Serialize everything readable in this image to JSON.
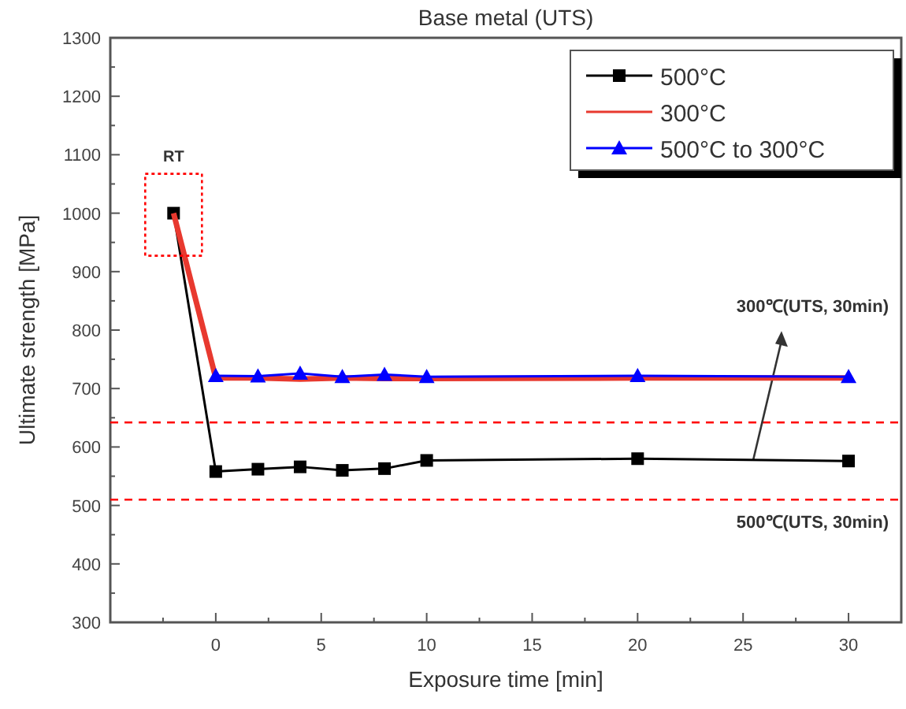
{
  "chart_data": {
    "type": "line",
    "title": "Base metal (UTS)",
    "xlabel": "Exposure time [min]",
    "ylabel": "Ultimate strength [MPa]",
    "xlim": [
      -5,
      32.5
    ],
    "ylim": [
      300,
      1300
    ],
    "xticks": [
      {
        "value": -2.5,
        "label": null
      },
      0,
      {
        "value": 2.5,
        "label": null
      },
      5,
      {
        "value": 7.5,
        "label": null
      },
      10,
      {
        "value": 12.5,
        "label": null
      },
      15,
      {
        "value": 17.5,
        "label": null
      },
      20,
      {
        "value": 22.5,
        "label": null
      },
      25,
      {
        "value": 27.5,
        "label": null
      },
      30
    ],
    "yticks": [
      300,
      {
        "value": 350,
        "label": null
      },
      400,
      {
        "value": 450,
        "label": null
      },
      500,
      {
        "value": 550,
        "label": null
      },
      600,
      {
        "value": 650,
        "label": null
      },
      700,
      {
        "value": 750,
        "label": null
      },
      800,
      {
        "value": 850,
        "label": null
      },
      900,
      {
        "value": 950,
        "label": null
      },
      1000,
      {
        "value": 1050,
        "label": null
      },
      1100,
      {
        "value": 1150,
        "label": null
      },
      1200,
      {
        "value": 1250,
        "label": null
      },
      1300
    ],
    "grid": false,
    "legend": "top right",
    "line_style": "solid",
    "series": [
      {
        "name": "500°C",
        "color": "#000000",
        "marker": "square",
        "x": [
          -2,
          0,
          2,
          4,
          6,
          8,
          10,
          20,
          30
        ],
        "values": [
          1000,
          558,
          562,
          566,
          560,
          563,
          577,
          580,
          576
        ]
      },
      {
        "name": "300°C",
        "color": "#e8392f",
        "marker": "none",
        "x": [
          -2,
          0,
          2,
          4,
          6,
          8,
          10,
          20,
          30
        ],
        "values": [
          1000,
          718,
          718,
          716,
          718,
          717,
          717,
          718,
          718
        ]
      },
      {
        "name": "500°C to 300°C",
        "color": "#0000ff",
        "marker": "triangle",
        "x": [
          0,
          2,
          4,
          6,
          8,
          10,
          20,
          30
        ],
        "values": [
          722,
          721,
          726,
          720,
          724,
          720,
          722,
          720
        ]
      }
    ],
    "ref_lines": [
      {
        "axis": "y",
        "value": 642,
        "color": "#ff0000",
        "line_style": "dashed"
      },
      {
        "axis": "y",
        "value": 510,
        "label": "500℃(UTS, 30min)",
        "color": "#ff0000",
        "line_style": "dashed"
      }
    ],
    "annotations": [
      "RT",
      "300℃(UTS, 30min)"
    ]
  }
}
